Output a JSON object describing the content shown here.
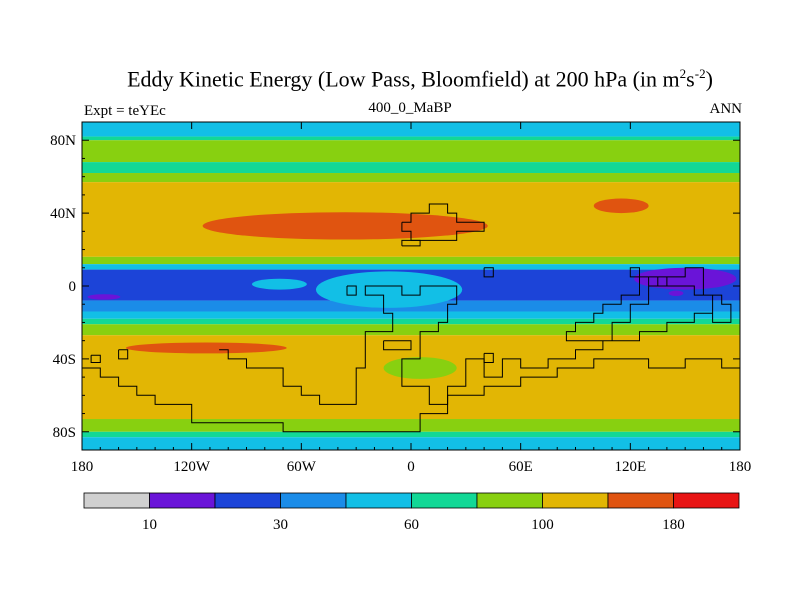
{
  "chart_data": {
    "type": "heatmap",
    "title_main": "Eddy Kinetic Energy (Low Pass, Bloomfield) at 200 hPa (in m",
    "title_sup1": "2",
    "title_mid": "s",
    "title_sup2": "-2",
    "title_end": ")",
    "subtitle_left": "Expt = teYEc",
    "subtitle_center": "400_0_MaBP",
    "subtitle_right": "ANN",
    "xlim": [
      -180,
      180
    ],
    "ylim": [
      -90,
      90
    ],
    "x_ticks": [
      {
        "value": -180,
        "label": "180"
      },
      {
        "value": -120,
        "label": "120W"
      },
      {
        "value": -60,
        "label": "60W"
      },
      {
        "value": 0,
        "label": "0"
      },
      {
        "value": 60,
        "label": "60E"
      },
      {
        "value": 120,
        "label": "120E"
      },
      {
        "value": 180,
        "label": "180"
      }
    ],
    "y_ticks": [
      {
        "value": 80,
        "label": "80N"
      },
      {
        "value": 40,
        "label": "40N"
      },
      {
        "value": 0,
        "label": "0"
      },
      {
        "value": -40,
        "label": "40S"
      },
      {
        "value": -80,
        "label": "80S"
      }
    ],
    "colorbar": {
      "colors": [
        "#d0d0d0",
        "#6a14d8",
        "#1c44d8",
        "#1b8ce8",
        "#12bfe6",
        "#12d896",
        "#88d010",
        "#e2b604",
        "#e05410",
        "#e81414"
      ],
      "labels": [
        {
          "index": 1,
          "text": "10"
        },
        {
          "index": 3,
          "text": "30"
        },
        {
          "index": 5,
          "text": "60"
        },
        {
          "index": 7,
          "text": "100"
        },
        {
          "index": 9,
          "text": "180"
        }
      ]
    },
    "bands": [
      {
        "lat": [
          82,
          90
        ],
        "level": 4
      },
      {
        "lat": [
          80,
          82
        ],
        "level": 5
      },
      {
        "lat": [
          68,
          80
        ],
        "level": 6
      },
      {
        "lat": [
          62,
          68
        ],
        "level": 5
      },
      {
        "lat": [
          57,
          62
        ],
        "level": 6
      },
      {
        "lat": [
          16,
          57
        ],
        "level": 7
      },
      {
        "lat": [
          12,
          16
        ],
        "level": 6
      },
      {
        "lat": [
          9,
          12
        ],
        "level": 4
      },
      {
        "lat": [
          -8,
          9
        ],
        "level": 2
      },
      {
        "lat": [
          -14,
          -8
        ],
        "level": 3
      },
      {
        "lat": [
          -18,
          -14
        ],
        "level": 4
      },
      {
        "lat": [
          -21,
          -18
        ],
        "level": 5
      },
      {
        "lat": [
          -27,
          -21
        ],
        "level": 6
      },
      {
        "lat": [
          -73,
          -27
        ],
        "level": 7
      },
      {
        "lat": [
          -80,
          -73
        ],
        "level": 6
      },
      {
        "lat": [
          -83,
          -80
        ],
        "level": 5
      },
      {
        "lat": [
          -90,
          -83
        ],
        "level": 4
      }
    ],
    "blobs": [
      {
        "lon": -36,
        "lat": 33,
        "rlon": 78,
        "rlat": 7.5,
        "level": 8
      },
      {
        "lon": 115,
        "lat": 44,
        "rlon": 15,
        "rlat": 4,
        "level": 8
      },
      {
        "lon": -112,
        "lat": -34,
        "rlon": 44,
        "rlat": 3,
        "level": 8
      },
      {
        "lon": -168,
        "lat": -6,
        "rlon": 9,
        "rlat": 1.5,
        "level": 1
      },
      {
        "lon": 145,
        "lat": -4,
        "rlon": 4,
        "rlat": 1.5,
        "level": 1
      },
      {
        "lon": -5,
        "lat": -2,
        "rlon": 30,
        "rlat": 8,
        "level": 3
      },
      {
        "lon": 150,
        "lat": 4,
        "rlon": 28,
        "rlat": 6,
        "level": 1
      },
      {
        "lon": 5,
        "lat": -45,
        "rlon": 20,
        "rlat": 6,
        "level": 6
      },
      {
        "lon": -12,
        "lat": -2,
        "rlon": 40,
        "rlat": 10,
        "level": 4
      },
      {
        "lon": -72,
        "lat": 1,
        "rlon": 15,
        "rlat": 3,
        "level": 4
      }
    ],
    "coastlines": [
      [
        [
          -105,
          -35
        ],
        [
          -100,
          -35
        ],
        [
          -100,
          -40
        ],
        [
          -90,
          -40
        ],
        [
          -90,
          -45
        ],
        [
          -70,
          -45
        ],
        [
          -70,
          -55
        ],
        [
          -60,
          -55
        ],
        [
          -60,
          -60
        ],
        [
          -50,
          -60
        ],
        [
          -50,
          -65
        ],
        [
          -30,
          -65
        ],
        [
          -30,
          -45
        ],
        [
          -25,
          -45
        ],
        [
          -25,
          -25
        ],
        [
          -10,
          -25
        ],
        [
          -10,
          -15
        ],
        [
          -15,
          -15
        ],
        [
          -15,
          -5
        ],
        [
          -25,
          -5
        ],
        [
          -25,
          0
        ],
        [
          -5,
          0
        ],
        [
          -5,
          -5
        ],
        [
          5,
          -5
        ],
        [
          5,
          0
        ],
        [
          25,
          0
        ],
        [
          25,
          -10
        ],
        [
          20,
          -10
        ],
        [
          20,
          -20
        ],
        [
          15,
          -20
        ],
        [
          15,
          -25
        ],
        [
          5,
          -25
        ],
        [
          5,
          -40
        ],
        [
          -5,
          -40
        ],
        [
          -5,
          -55
        ],
        [
          10,
          -55
        ],
        [
          10,
          -65
        ],
        [
          20,
          -65
        ],
        [
          20,
          -55
        ],
        [
          30,
          -55
        ],
        [
          30,
          -40
        ],
        [
          40,
          -40
        ],
        [
          40,
          -50
        ],
        [
          50,
          -50
        ],
        [
          50,
          -40
        ],
        [
          60,
          -40
        ],
        [
          60,
          -45
        ],
        [
          75,
          -45
        ],
        [
          75,
          -40
        ],
        [
          90,
          -40
        ],
        [
          90,
          -35
        ],
        [
          105,
          -35
        ],
        [
          105,
          -30
        ],
        [
          125,
          -30
        ],
        [
          125,
          -25
        ],
        [
          140,
          -25
        ],
        [
          140,
          -20
        ],
        [
          155,
          -20
        ],
        [
          155,
          -15
        ],
        [
          165,
          -15
        ],
        [
          165,
          -20
        ],
        [
          175,
          -20
        ],
        [
          175,
          -10
        ],
        [
          170,
          -10
        ],
        [
          170,
          -5
        ],
        [
          160,
          -5
        ],
        [
          160,
          10
        ],
        [
          150,
          10
        ],
        [
          150,
          5
        ],
        [
          140,
          5
        ],
        [
          140,
          0
        ],
        [
          130,
          0
        ],
        [
          130,
          5
        ],
        [
          125,
          5
        ],
        [
          125,
          -5
        ],
        [
          115,
          -5
        ],
        [
          115,
          -10
        ],
        [
          105,
          -10
        ],
        [
          105,
          -15
        ],
        [
          100,
          -15
        ],
        [
          100,
          -20
        ],
        [
          90,
          -20
        ],
        [
          90,
          -25
        ],
        [
          85,
          -25
        ],
        [
          85,
          -30
        ],
        [
          110,
          -30
        ],
        [
          110,
          -20
        ],
        [
          120,
          -20
        ],
        [
          120,
          -10
        ],
        [
          130,
          -10
        ],
        [
          130,
          0
        ],
        [
          135,
          0
        ],
        [
          135,
          5
        ],
        [
          120,
          5
        ],
        [
          120,
          10
        ],
        [
          125,
          10
        ],
        [
          125,
          5
        ],
        [
          140,
          5
        ],
        [
          140,
          0
        ],
        [
          155,
          0
        ],
        [
          155,
          -5
        ],
        [
          165,
          -5
        ],
        [
          165,
          -15
        ]
      ],
      [
        [
          -35,
          0
        ],
        [
          -30,
          0
        ],
        [
          -30,
          -5
        ],
        [
          -35,
          -5
        ],
        [
          -35,
          0
        ]
      ],
      [
        [
          -5,
          35
        ],
        [
          0,
          35
        ],
        [
          0,
          40
        ],
        [
          10,
          40
        ],
        [
          10,
          45
        ],
        [
          20,
          45
        ],
        [
          20,
          40
        ],
        [
          25,
          40
        ],
        [
          25,
          35
        ],
        [
          40,
          35
        ],
        [
          40,
          30
        ],
        [
          25,
          30
        ],
        [
          25,
          25
        ],
        [
          0,
          25
        ],
        [
          0,
          30
        ],
        [
          -5,
          30
        ],
        [
          -5,
          35
        ]
      ],
      [
        [
          -5,
          22
        ],
        [
          5,
          22
        ],
        [
          5,
          25
        ],
        [
          -5,
          25
        ],
        [
          -5,
          22
        ]
      ],
      [
        [
          40,
          10
        ],
        [
          45,
          10
        ],
        [
          45,
          5
        ],
        [
          40,
          5
        ],
        [
          40,
          10
        ]
      ],
      [
        [
          -15,
          -30
        ],
        [
          0,
          -30
        ],
        [
          0,
          -35
        ],
        [
          -15,
          -35
        ],
        [
          -15,
          -30
        ]
      ],
      [
        [
          -180,
          -45
        ],
        [
          -170,
          -45
        ],
        [
          -170,
          -50
        ],
        [
          -160,
          -50
        ],
        [
          -160,
          -55
        ],
        [
          -150,
          -55
        ],
        [
          -150,
          -60
        ],
        [
          -140,
          -60
        ],
        [
          -140,
          -65
        ],
        [
          -120,
          -65
        ],
        [
          -120,
          -75
        ],
        [
          -70,
          -75
        ],
        [
          -70,
          -80
        ],
        [
          5,
          -80
        ],
        [
          5,
          -70
        ],
        [
          20,
          -70
        ],
        [
          20,
          -60
        ],
        [
          40,
          -60
        ],
        [
          40,
          -55
        ],
        [
          60,
          -55
        ],
        [
          60,
          -50
        ],
        [
          80,
          -50
        ],
        [
          80,
          -45
        ],
        [
          100,
          -45
        ],
        [
          100,
          -40
        ],
        [
          130,
          -40
        ],
        [
          130,
          -45
        ],
        [
          150,
          -45
        ],
        [
          150,
          -40
        ],
        [
          170,
          -40
        ],
        [
          170,
          -45
        ],
        [
          180,
          -45
        ]
      ],
      [
        [
          -160,
          -35
        ],
        [
          -155,
          -35
        ],
        [
          -155,
          -40
        ],
        [
          -160,
          -40
        ],
        [
          -160,
          -35
        ]
      ],
      [
        [
          -175,
          -38
        ],
        [
          -170,
          -38
        ],
        [
          -170,
          -42
        ],
        [
          -175,
          -42
        ],
        [
          -175,
          -38
        ]
      ],
      [
        [
          40,
          -37
        ],
        [
          45,
          -37
        ],
        [
          45,
          -42
        ],
        [
          40,
          -42
        ],
        [
          40,
          -37
        ]
      ]
    ]
  }
}
